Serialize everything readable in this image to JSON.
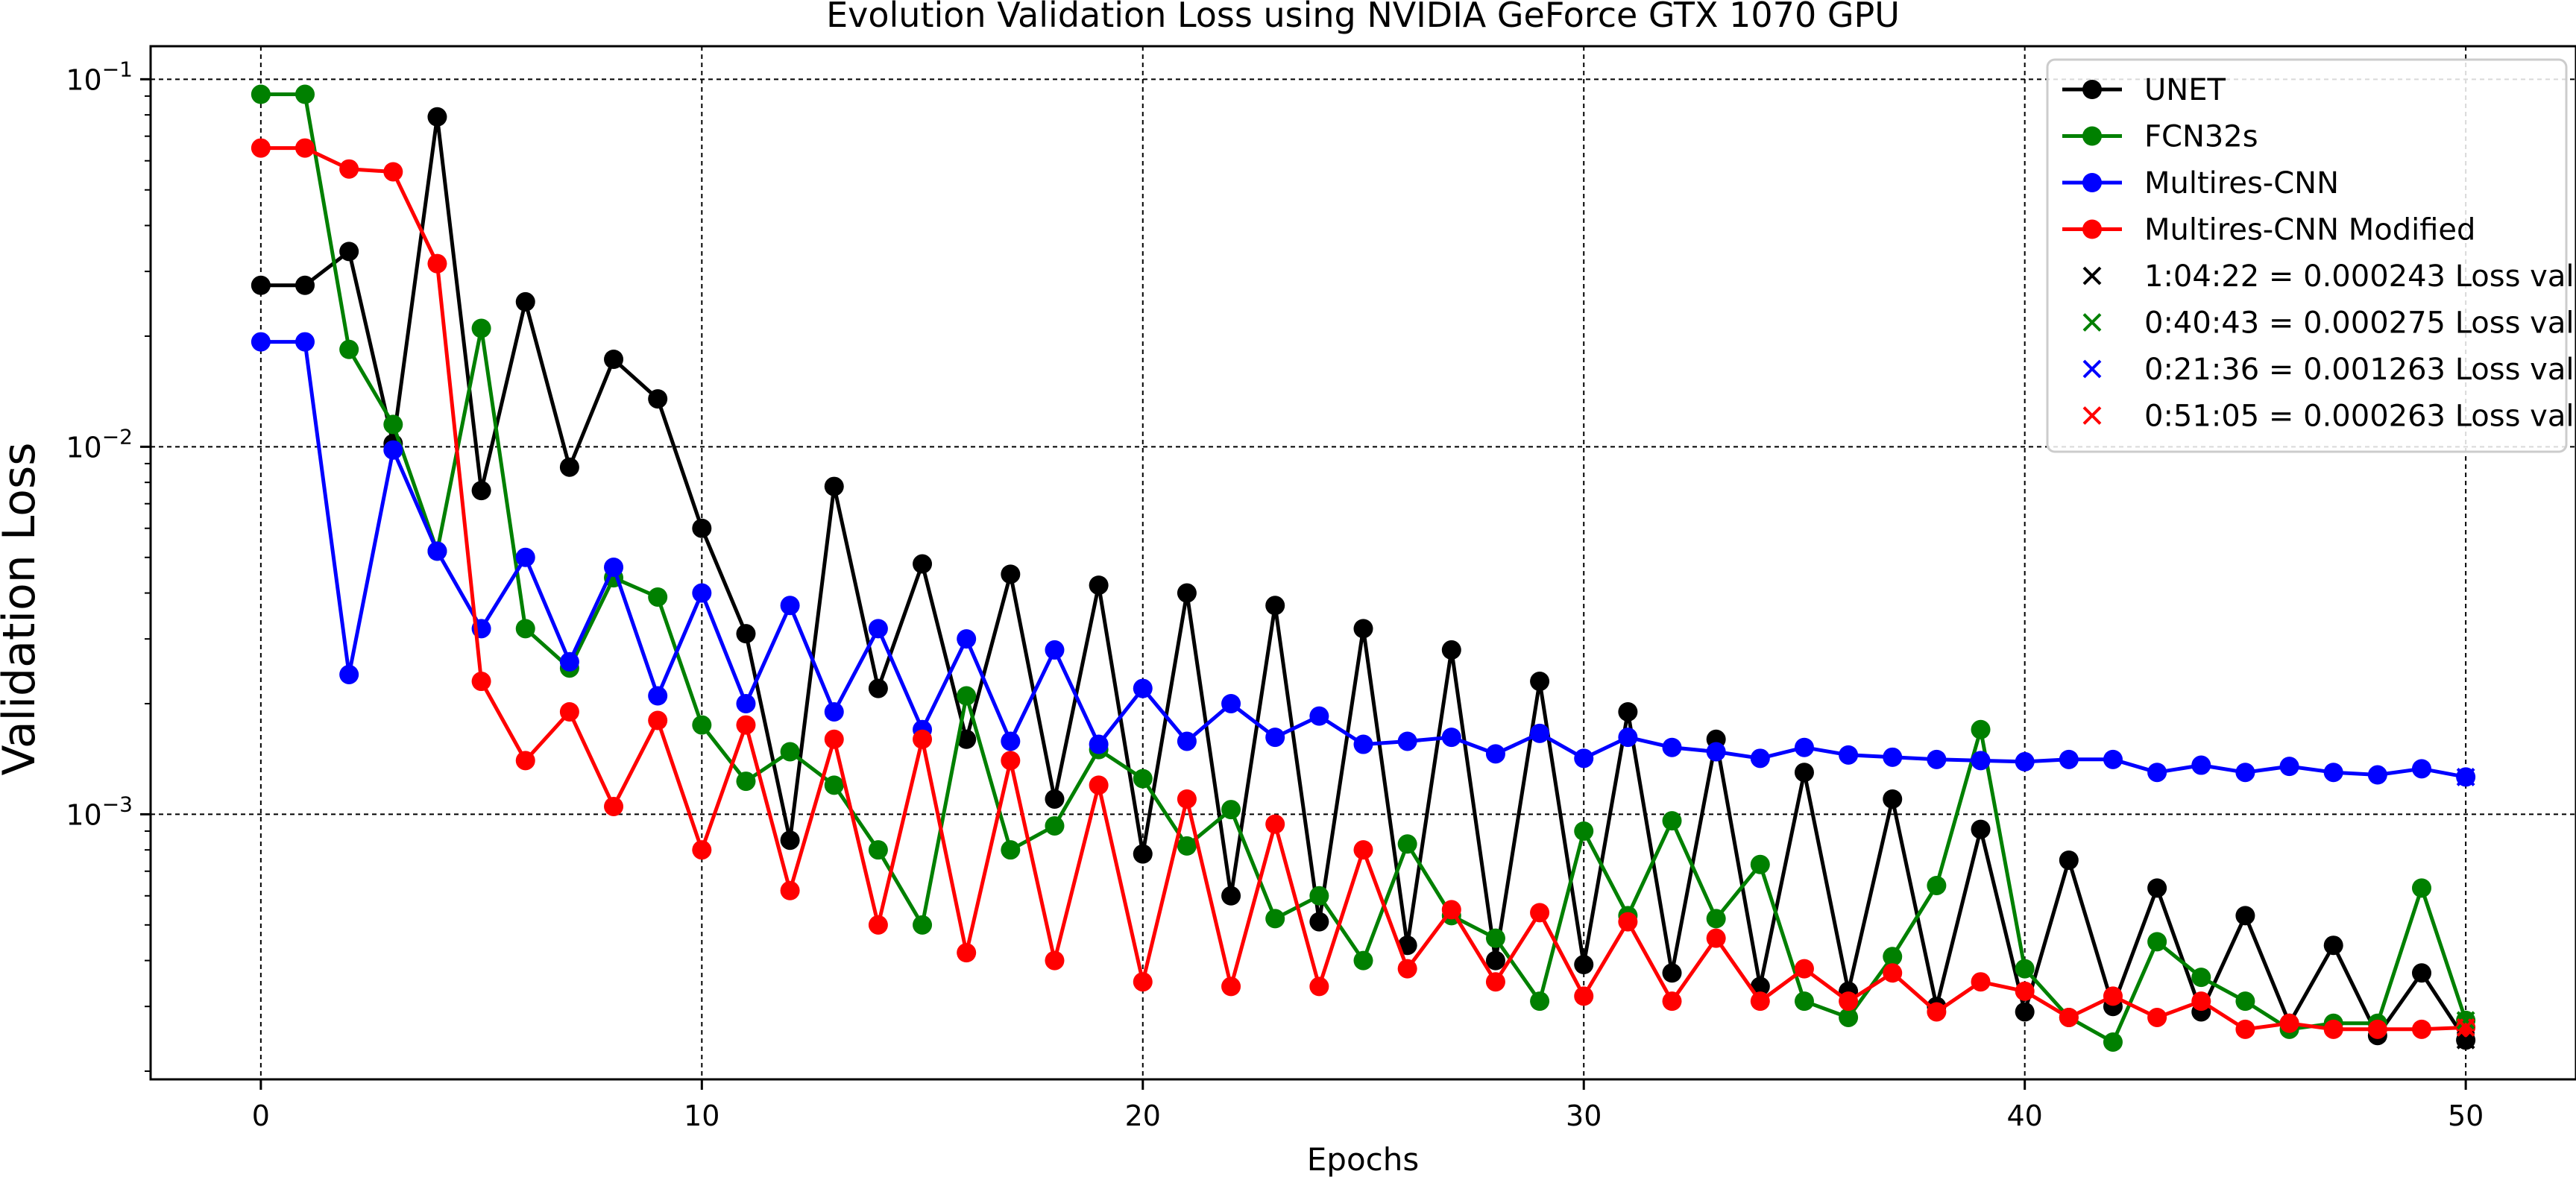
{
  "chart_data": {
    "type": "line",
    "title": "Evolution Validation Loss using NVIDIA GeForce GTX 1070 GPU",
    "xlabel": "Epochs",
    "ylabel": "Validation Loss",
    "xlim": [
      -2.5,
      52.5
    ],
    "ylim": [
      0.00019,
      0.123
    ],
    "yscale": "log",
    "grid": true,
    "legend_position": "top-right",
    "x_ticks": [
      0,
      10,
      20,
      30,
      40,
      50
    ],
    "y_ticks": [
      {
        "value": 0.001,
        "base": "10",
        "exp": "−3"
      },
      {
        "value": 0.01,
        "base": "10",
        "exp": "−2"
      },
      {
        "value": 0.1,
        "base": "10",
        "exp": "−1"
      }
    ],
    "x": [
      0,
      1,
      2,
      3,
      4,
      5,
      6,
      7,
      8,
      9,
      10,
      11,
      12,
      13,
      14,
      15,
      16,
      17,
      18,
      19,
      20,
      21,
      22,
      23,
      24,
      25,
      26,
      27,
      28,
      29,
      30,
      31,
      32,
      33,
      34,
      35,
      36,
      37,
      38,
      39,
      40,
      41,
      42,
      43,
      44,
      45,
      46,
      47,
      48,
      49,
      50
    ],
    "series": [
      {
        "name": "UNET",
        "color": "#000000",
        "values": [
          0.0275,
          0.0275,
          0.034,
          0.0102,
          0.079,
          0.0076,
          0.0248,
          0.0088,
          0.0173,
          0.0135,
          0.006,
          0.0031,
          0.00085,
          0.0078,
          0.0022,
          0.0048,
          0.0016,
          0.0045,
          0.0011,
          0.0042,
          0.00078,
          0.004,
          0.0006,
          0.0037,
          0.00051,
          0.0032,
          0.00044,
          0.0028,
          0.0004,
          0.0023,
          0.00039,
          0.0019,
          0.00037,
          0.0016,
          0.00034,
          0.0013,
          0.00033,
          0.0011,
          0.0003,
          0.00091,
          0.00029,
          0.00075,
          0.0003,
          0.00063,
          0.00029,
          0.00053,
          0.00027,
          0.00044,
          0.00025,
          0.00037,
          0.000243
        ]
      },
      {
        "name": "FCN32s",
        "color": "#008000",
        "values": [
          0.091,
          0.091,
          0.0184,
          0.0115,
          0.0052,
          0.021,
          0.0032,
          0.0025,
          0.0044,
          0.0039,
          0.00175,
          0.00123,
          0.00148,
          0.0012,
          0.0008,
          0.0005,
          0.0021,
          0.0008,
          0.00093,
          0.0015,
          0.00125,
          0.00082,
          0.00103,
          0.00052,
          0.0006,
          0.0004,
          0.00083,
          0.00053,
          0.00046,
          0.00031,
          0.0009,
          0.00053,
          0.00096,
          0.00052,
          0.00073,
          0.00031,
          0.00028,
          0.00041,
          0.00064,
          0.0017,
          0.00038,
          0.00028,
          0.00024,
          0.00045,
          0.00036,
          0.00031,
          0.00026,
          0.00027,
          0.00027,
          0.00063,
          0.000275
        ]
      },
      {
        "name": "Multires-CNN",
        "color": "#0000ff",
        "values": [
          0.0193,
          0.0193,
          0.0024,
          0.0098,
          0.0052,
          0.0032,
          0.005,
          0.0026,
          0.0047,
          0.0021,
          0.004,
          0.002,
          0.0037,
          0.0019,
          0.0032,
          0.0017,
          0.003,
          0.00158,
          0.0028,
          0.00155,
          0.0022,
          0.00158,
          0.002,
          0.00162,
          0.00185,
          0.00155,
          0.00158,
          0.00162,
          0.00146,
          0.00166,
          0.00142,
          0.00162,
          0.00152,
          0.00148,
          0.00142,
          0.00152,
          0.00145,
          0.00143,
          0.00141,
          0.0014,
          0.00139,
          0.00141,
          0.00141,
          0.0013,
          0.00136,
          0.0013,
          0.00135,
          0.0013,
          0.00128,
          0.00133,
          0.001263
        ]
      },
      {
        "name": "Multires-CNN Modified",
        "color": "#ff0000",
        "values": [
          0.065,
          0.065,
          0.057,
          0.056,
          0.0315,
          0.0023,
          0.0014,
          0.0019,
          0.00105,
          0.0018,
          0.0008,
          0.00175,
          0.00062,
          0.0016,
          0.0005,
          0.0016,
          0.00042,
          0.0014,
          0.0004,
          0.0012,
          0.00035,
          0.0011,
          0.00034,
          0.00094,
          0.00034,
          0.0008,
          0.00038,
          0.00055,
          0.00035,
          0.00054,
          0.00032,
          0.00051,
          0.00031,
          0.00046,
          0.00031,
          0.00038,
          0.00031,
          0.00037,
          0.00029,
          0.00035,
          0.00033,
          0.00028,
          0.00032,
          0.00028,
          0.00031,
          0.00026,
          0.00027,
          0.00026,
          0.00026,
          0.00026,
          0.000263
        ]
      }
    ],
    "markers": [
      {
        "label": "1:04:22 = 0.000243 Loss val",
        "color": "#000000",
        "x": 50,
        "y": 0.000243
      },
      {
        "label": "0:40:43 = 0.000275 Loss val",
        "color": "#008000",
        "x": 50,
        "y": 0.000275
      },
      {
        "label": "0:21:36 = 0.001263 Loss val",
        "color": "#0000ff",
        "x": 50,
        "y": 0.001263
      },
      {
        "label": "0:51:05 = 0.000263 Loss val",
        "color": "#ff0000",
        "x": 50,
        "y": 0.000263
      }
    ]
  }
}
